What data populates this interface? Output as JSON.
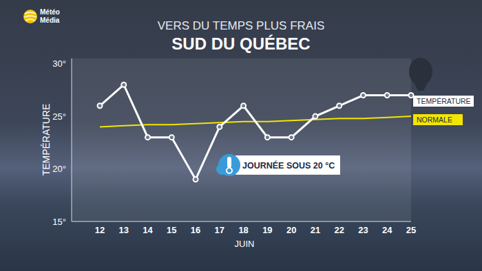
{
  "chart_data": {
    "type": "line",
    "logo": [
      "Météo",
      "Média"
    ],
    "subtitle": "VERS DU TEMPS PLUS FRAIS",
    "title": "SUD DU QUÉBEC",
    "xlabel": "JUIN",
    "ylabel": "TEMPÉRATURE",
    "categories": [
      "12",
      "13",
      "14",
      "15",
      "16",
      "17",
      "18",
      "19",
      "20",
      "21",
      "22",
      "23",
      "24",
      "25"
    ],
    "series": [
      {
        "name": "NORMALE",
        "color": "#f2e600",
        "marker": "none",
        "values": [
          24.0,
          24.1,
          24.2,
          24.2,
          24.3,
          24.4,
          24.5,
          24.5,
          24.6,
          24.7,
          24.8,
          24.8,
          24.9,
          25.0
        ]
      },
      {
        "name": "TEMPÉRATURE",
        "color": "#ffffff",
        "marker": "circle",
        "values": [
          26,
          28,
          23,
          23,
          19,
          24,
          26,
          23,
          23,
          25,
          26,
          27,
          27,
          27
        ]
      }
    ],
    "ylim": [
      15,
      30.5
    ],
    "yticks": [
      {
        "value": 15,
        "label": "15°"
      },
      {
        "value": 20,
        "label": "20°"
      },
      {
        "value": 25,
        "label": "25°"
      },
      {
        "value": 30,
        "label": "30°"
      }
    ],
    "grid": false,
    "annotation": "JOURNÉE SOUS 20 °C"
  }
}
